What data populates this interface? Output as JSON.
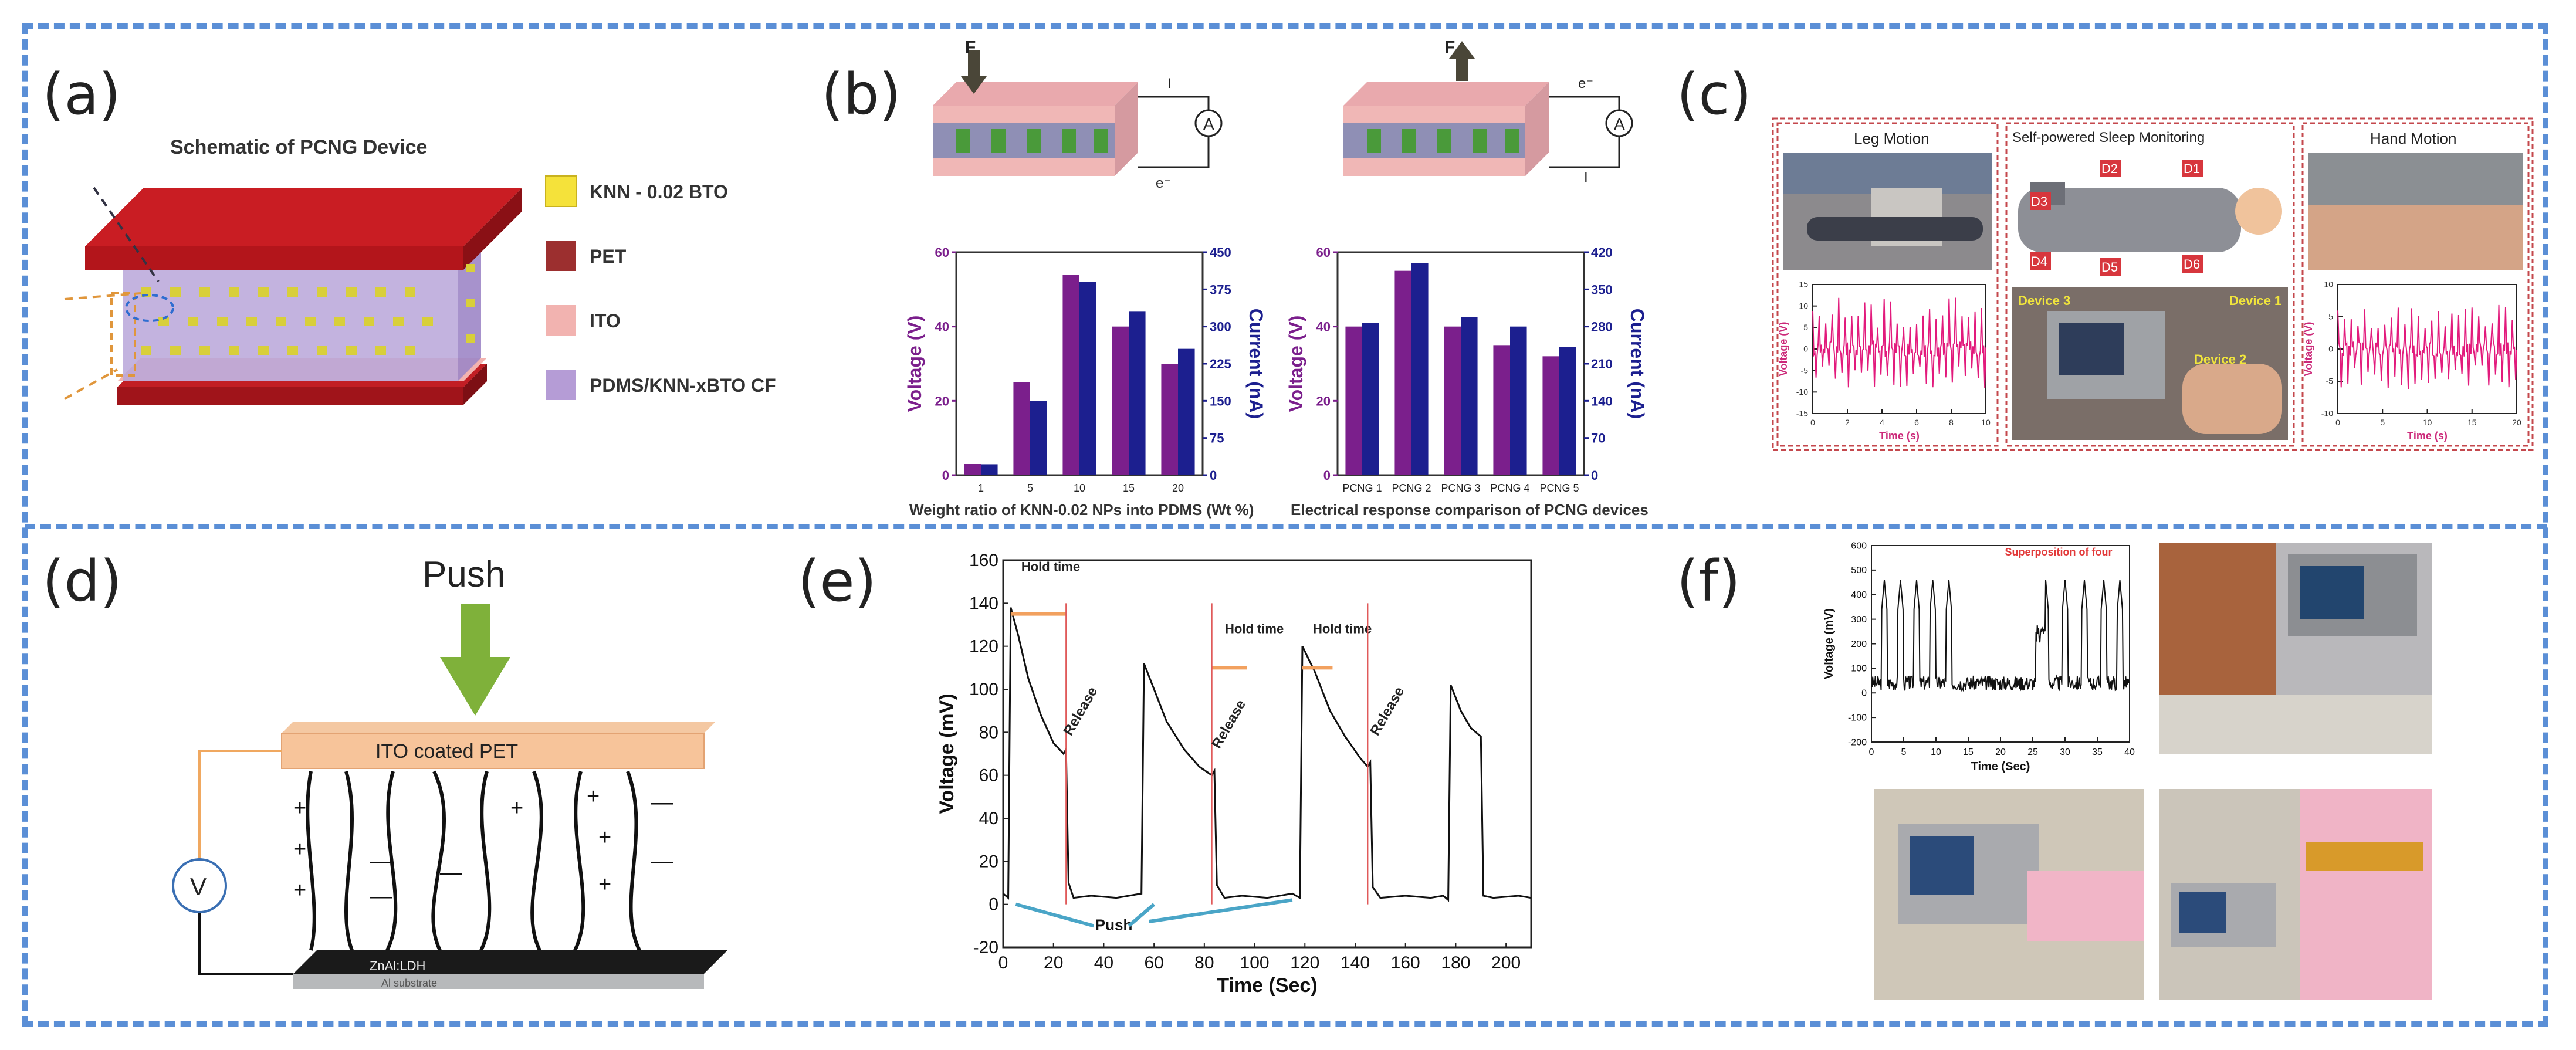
{
  "panels": {
    "a": {
      "label": "(a)",
      "title": "Schematic of PCNG Device",
      "legend": [
        {
          "name": "KNN - 0.02 BTO",
          "color": "#f5e23a"
        },
        {
          "name": "PET",
          "color": "#9c2f2f"
        },
        {
          "name": "ITO",
          "color": "#f2b3b0"
        },
        {
          "name": "PDMS/KNN-xBTO CF",
          "color": "#b59cd6"
        }
      ]
    },
    "b": {
      "label": "(b)",
      "force_label": "F",
      "ammeter": "A",
      "current_symbol": "I",
      "electron_label": "e⁻",
      "left_xlabel": "Weight ratio of KNN-0.02 NPs into PDMS (Wt %)",
      "right_xlabel": "Electrical response comparison of PCNG devices"
    },
    "c": {
      "label": "(c)",
      "leg_title": "Leg Motion",
      "sleep_title": "Self-powered Sleep Monitoring",
      "hand_title": "Hand Motion",
      "ylabel": "Voltage (V)",
      "xlabel": "Time (s)",
      "device_labels": [
        "D1",
        "D2",
        "D3",
        "D4",
        "D5",
        "D6"
      ],
      "photo_labels": [
        "Device 1",
        "Device 2",
        "Device 3"
      ]
    },
    "d": {
      "label": "(d)",
      "push_label": "Push",
      "electrode_label": "ITO coated PET",
      "bottom_label": "ZnAl:LDH",
      "substrate_label": "Al substrate",
      "meter_label": "V"
    },
    "e": {
      "label": "(e)",
      "hold_label": "Hold time",
      "release_label": "Release",
      "push_label": "Push"
    },
    "f": {
      "label": "(f)",
      "annotation": "Superposition of four"
    }
  },
  "chart_data": [
    {
      "id": "b-left",
      "type": "bar",
      "title": "",
      "xlabel": "Weight ratio of KNN-0.02 NPs into PDMS (Wt %)",
      "ylabel": "Voltage (V)",
      "y2label": "Current (nA)",
      "categories": [
        "1",
        "5",
        "10",
        "15",
        "20"
      ],
      "series": [
        {
          "name": "Voltage (V)",
          "axis": "left",
          "color": "#7b1f8c",
          "values": [
            3,
            25,
            54,
            40,
            30
          ]
        },
        {
          "name": "Current (nA)",
          "axis": "right",
          "color": "#1c1f8f",
          "values": [
            22,
            150,
            390,
            330,
            255
          ]
        }
      ],
      "ylim": [
        0,
        60
      ],
      "y2lim": [
        0,
        450
      ],
      "yticks": [
        0,
        20,
        40,
        60
      ],
      "y2ticks": [
        0,
        75,
        150,
        225,
        300,
        375,
        450
      ]
    },
    {
      "id": "b-right",
      "type": "bar",
      "title": "",
      "xlabel": "Electrical response comparison of PCNG devices",
      "ylabel": "Voltage (V)",
      "y2label": "Current (nA)",
      "categories": [
        "PCNG 1",
        "PCNG 2",
        "PCNG 3",
        "PCNG 4",
        "PCNG 5"
      ],
      "series": [
        {
          "name": "Voltage (V)",
          "axis": "left",
          "color": "#7b1f8c",
          "values": [
            40,
            55,
            40,
            35,
            32
          ]
        },
        {
          "name": "Current (nA)",
          "axis": "right",
          "color": "#1c1f8f",
          "values": [
            287,
            399,
            298,
            280,
            241
          ]
        }
      ],
      "ylim": [
        0,
        60
      ],
      "y2lim": [
        0,
        420
      ],
      "yticks": [
        0,
        20,
        40,
        60
      ],
      "y2ticks": [
        0,
        70,
        140,
        210,
        280,
        350,
        420
      ]
    },
    {
      "id": "c-leg",
      "type": "line",
      "xlabel": "Time (s)",
      "ylabel": "Voltage (V)",
      "xlim": [
        0,
        10
      ],
      "ylim": [
        -15,
        15
      ],
      "xticks": [
        0,
        2,
        4,
        6,
        8,
        10
      ],
      "yticks": [
        -15,
        -10,
        -5,
        0,
        5,
        10,
        15
      ]
    },
    {
      "id": "c-hand",
      "type": "line",
      "xlabel": "Time (s)",
      "ylabel": "Voltage (V)",
      "xlim": [
        0,
        20
      ],
      "ylim": [
        -10,
        10
      ],
      "xticks": [
        0,
        5,
        10,
        15,
        20
      ],
      "yticks": [
        -10,
        -5,
        0,
        5,
        10
      ]
    },
    {
      "id": "e",
      "type": "line",
      "title": "",
      "xlabel": "Time (Sec)",
      "ylabel": "Voltage (mV)",
      "xlim": [
        0,
        210
      ],
      "ylim": [
        -20,
        160
      ],
      "xticks": [
        0,
        20,
        40,
        60,
        80,
        100,
        120,
        140,
        160,
        180,
        200
      ],
      "yticks": [
        -20,
        0,
        20,
        40,
        60,
        80,
        100,
        120,
        140,
        160
      ],
      "series": [
        {
          "name": "signal",
          "points": [
            [
              0,
              5
            ],
            [
              2,
              3
            ],
            [
              3,
              138
            ],
            [
              6,
              125
            ],
            [
              10,
              105
            ],
            [
              15,
              88
            ],
            [
              20,
              75
            ],
            [
              24,
              70
            ],
            [
              25,
              72
            ],
            [
              26,
              10
            ],
            [
              28,
              3
            ],
            [
              35,
              4
            ],
            [
              45,
              3
            ],
            [
              55,
              5
            ],
            [
              56,
              112
            ],
            [
              60,
              100
            ],
            [
              65,
              85
            ],
            [
              72,
              72
            ],
            [
              78,
              64
            ],
            [
              83,
              60
            ],
            [
              84,
              62
            ],
            [
              85,
              9
            ],
            [
              88,
              3
            ],
            [
              95,
              4
            ],
            [
              105,
              3
            ],
            [
              115,
              5
            ],
            [
              118,
              3
            ],
            [
              119,
              120
            ],
            [
              124,
              108
            ],
            [
              130,
              90
            ],
            [
              136,
              78
            ],
            [
              142,
              68
            ],
            [
              145,
              64
            ],
            [
              146,
              66
            ],
            [
              147,
              8
            ],
            [
              150,
              3
            ],
            [
              160,
              4
            ],
            [
              170,
              3
            ],
            [
              175,
              4
            ],
            [
              177,
              2
            ],
            [
              178,
              102
            ],
            [
              182,
              90
            ],
            [
              186,
              82
            ],
            [
              190,
              78
            ],
            [
              191,
              4
            ],
            [
              195,
              3
            ],
            [
              205,
              4
            ],
            [
              210,
              3
            ]
          ]
        }
      ]
    },
    {
      "id": "f",
      "type": "line",
      "title": "",
      "xlabel": "Time (Sec)",
      "ylabel": "Voltage (mV)",
      "xlim": [
        0,
        40
      ],
      "ylim": [
        -200,
        600
      ],
      "xticks": [
        0,
        5,
        10,
        15,
        20,
        25,
        30,
        35,
        40
      ],
      "yticks": [
        -200,
        -100,
        0,
        100,
        200,
        300,
        400,
        500,
        600
      ]
    }
  ]
}
